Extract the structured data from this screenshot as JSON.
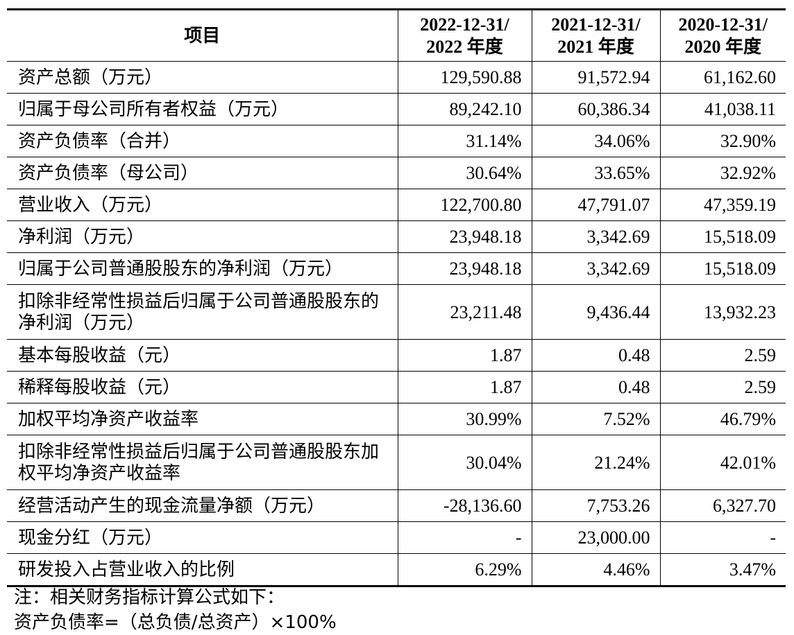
{
  "table": {
    "headers": [
      {
        "line1": "项目",
        "line2": ""
      },
      {
        "line1": "2022-12-31/",
        "line2": "2022 年度"
      },
      {
        "line1": "2021-12-31/",
        "line2": "2021 年度"
      },
      {
        "line1": "2020-12-31/",
        "line2": "2020 年度"
      }
    ],
    "rows": [
      {
        "item": "资产总额（万元）",
        "values": [
          "129,590.88",
          "91,572.94",
          "61,162.60"
        ]
      },
      {
        "item": "归属于母公司所有者权益（万元）",
        "values": [
          "89,242.10",
          "60,386.34",
          "41,038.11"
        ]
      },
      {
        "item": "资产负债率（合并）",
        "values": [
          "31.14%",
          "34.06%",
          "32.90%"
        ]
      },
      {
        "item": "资产负债率（母公司）",
        "values": [
          "30.64%",
          "33.65%",
          "32.92%"
        ]
      },
      {
        "item": "营业收入（万元）",
        "values": [
          "122,700.80",
          "47,791.07",
          "47,359.19"
        ]
      },
      {
        "item": "净利润（万元）",
        "values": [
          "23,948.18",
          "3,342.69",
          "15,518.09"
        ]
      },
      {
        "item": "归属于公司普通股股东的净利润（万元）",
        "values": [
          "23,948.18",
          "3,342.69",
          "15,518.09"
        ]
      },
      {
        "item": "扣除非经常性损益后归属于公司普通股股东的净利润（万元）",
        "values": [
          "23,211.48",
          "9,436.44",
          "13,932.23"
        ]
      },
      {
        "item": "基本每股收益（元）",
        "values": [
          "1.87",
          "0.48",
          "2.59"
        ]
      },
      {
        "item": "稀释每股收益（元）",
        "values": [
          "1.87",
          "0.48",
          "2.59"
        ]
      },
      {
        "item": "加权平均净资产收益率",
        "values": [
          "30.99%",
          "7.52%",
          "46.79%"
        ]
      },
      {
        "item": "扣除非经常性损益后归属于公司普通股股东加权平均净资产收益率",
        "values": [
          "30.04%",
          "21.24%",
          "42.01%"
        ]
      },
      {
        "item": "经营活动产生的现金流量净额（万元）",
        "values": [
          "-28,136.60",
          "7,753.26",
          "6,327.70"
        ]
      },
      {
        "item": "现金分红（万元）",
        "values": [
          "-",
          "23,000.00",
          "-"
        ]
      },
      {
        "item": "研发投入占营业收入的比例",
        "values": [
          "6.29%",
          "4.46%",
          "3.47%"
        ]
      }
    ]
  },
  "notes": {
    "line1": "注：相关财务指标计算公式如下：",
    "line2": "资产负债率=（总负债/总资产）×100%"
  }
}
